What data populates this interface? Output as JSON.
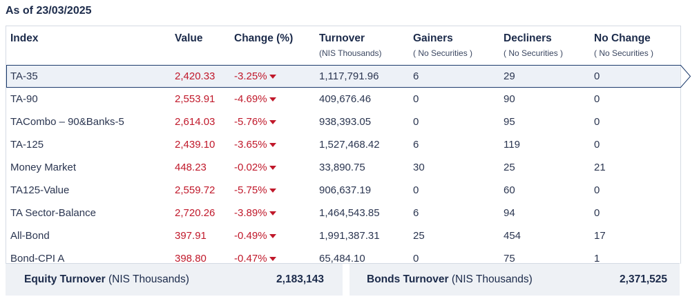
{
  "as_of": "As of 23/03/2025",
  "columns": {
    "index": "Index",
    "value": "Value",
    "change": "Change (%)",
    "turnover": "Turnover",
    "turnover_sub": "(NIS Thousands)",
    "gainers": "Gainers",
    "gainers_sub": "( No Securities )",
    "decliners": "Decliners",
    "decliners_sub": "( No Securities )",
    "no_change": "No Change",
    "no_change_sub": "( No Securities )"
  },
  "rows": [
    {
      "name": "TA-35",
      "value": "2,420.33",
      "change": "-3.25%",
      "turnover": "1,117,791.96",
      "gainers": "6",
      "decliners": "29",
      "no_change": "0"
    },
    {
      "name": "TA-90",
      "value": "2,553.91",
      "change": "-4.69%",
      "turnover": "409,676.46",
      "gainers": "0",
      "decliners": "90",
      "no_change": "0"
    },
    {
      "name": "TACombo – 90&Banks-5",
      "value": "2,614.03",
      "change": "-5.76%",
      "turnover": "938,393.05",
      "gainers": "0",
      "decliners": "95",
      "no_change": "0"
    },
    {
      "name": "TA-125",
      "value": "2,439.10",
      "change": "-3.65%",
      "turnover": "1,527,468.42",
      "gainers": "6",
      "decliners": "119",
      "no_change": "0"
    },
    {
      "name": "Money Market",
      "value": "448.23",
      "change": "-0.02%",
      "turnover": "33,890.75",
      "gainers": "30",
      "decliners": "25",
      "no_change": "21"
    },
    {
      "name": "TA125-Value",
      "value": "2,559.72",
      "change": "-5.75%",
      "turnover": "906,637.19",
      "gainers": "0",
      "decliners": "60",
      "no_change": "0"
    },
    {
      "name": "TA Sector-Balance",
      "value": "2,720.26",
      "change": "-3.89%",
      "turnover": "1,464,543.85",
      "gainers": "6",
      "decliners": "94",
      "no_change": "0"
    },
    {
      "name": "All-Bond",
      "value": "397.91",
      "change": "-0.49%",
      "turnover": "1,991,387.31",
      "gainers": "25",
      "decliners": "454",
      "no_change": "17"
    },
    {
      "name": "Bond-CPI A",
      "value": "398.80",
      "change": "-0.47%",
      "turnover": "65,484.10",
      "gainers": "0",
      "decliners": "75",
      "no_change": "1"
    }
  ],
  "selected_row": "TA-35",
  "footer": {
    "equity_label": "Equity Turnover",
    "equity_unit": "(NIS Thousands)",
    "equity_value": "2,183,143",
    "bonds_label": "Bonds Turnover",
    "bonds_unit": "(NIS Thousands)",
    "bonds_value": "2,371,525"
  },
  "colors": {
    "negative": "#c0182a",
    "header_text": "#1b2a4a",
    "selected_bg": "#edf1f7",
    "footer_bg": "#eef1f5"
  },
  "icons": {
    "change_direction": "triangle-down-icon"
  }
}
